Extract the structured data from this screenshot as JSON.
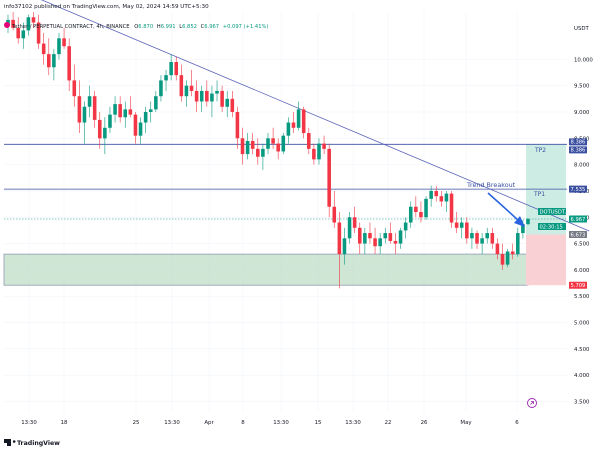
{
  "header": {
    "published_by": "info37102 published on TradingView.com, May 02, 2024 14:59 UTC+5:30",
    "symbol_line": "Tether / PERPETUAL CONTRACT, 4h, BINANCE",
    "open_label": "O",
    "open_value": "6.870",
    "high_label": "H",
    "high_value": "6.991",
    "low_label": "L",
    "low_value": "6.852",
    "close_label": "C",
    "close_value": "6.967",
    "change": "+0.097 (+1.41%)"
  },
  "currency": "USDT",
  "footer": {
    "brand": "TradingView"
  },
  "colors": {
    "up": "#089981",
    "down": "#f23645",
    "trendline": "#5b63b8",
    "level_line": "#3a4fa0",
    "support_zone": "#a9d1b3",
    "support_border": "#8f9bb3",
    "target_zone": "#cdece4",
    "stop_zone": "#f9d0d4",
    "arrow": "#2a63e0"
  },
  "annotations": {
    "trend_breakout": "Trend Breakout",
    "tp1": "TP1",
    "tp2": "TP2"
  },
  "price_badges": [
    {
      "value": "8.386",
      "bg": "#3a4fa0"
    },
    {
      "value": "8.386",
      "bg": "#3a4fa0"
    },
    {
      "value": "7.535",
      "bg": "#3a4fa0"
    },
    {
      "value": "DOTUSDT.P",
      "bg": "#089981"
    },
    {
      "value": "6.967",
      "bg": "#089981"
    },
    {
      "value": "02:30:15",
      "bg": "#089981"
    },
    {
      "value": "6.673",
      "bg": "#787b86"
    },
    {
      "value": "5.709",
      "bg": "#f23645"
    }
  ],
  "chart_data": {
    "type": "candlestick",
    "timeframe": "4h",
    "price_ticks": [
      "10.000",
      "9.500",
      "9.000",
      "8.500",
      "8.000",
      "7.500",
      "7.000",
      "6.500",
      "6.000",
      "5.500",
      "5.000",
      "4.500",
      "4.000",
      "3.500"
    ],
    "time_ticks": [
      "13:30",
      "18",
      "25",
      "13:30",
      "Apr",
      "8",
      "13:30",
      "15",
      "13:30",
      "22",
      "26",
      "May",
      "6"
    ],
    "ylim": [
      3.3,
      10.9
    ],
    "levels": {
      "tp2": 8.386,
      "tp1": 7.535,
      "entry": 6.673,
      "stop": 5.709,
      "support_zone": [
        5.709,
        6.3
      ],
      "last_price": 6.967
    },
    "trendline": {
      "from": [
        0,
        11.4
      ],
      "to": [
        114,
        6.74
      ]
    },
    "candles": [
      [
        10.65,
        10.85,
        10.5,
        10.75
      ],
      [
        10.75,
        10.9,
        10.55,
        10.6
      ],
      [
        10.6,
        10.8,
        10.3,
        10.4
      ],
      [
        10.4,
        10.7,
        10.2,
        10.55
      ],
      [
        10.55,
        10.85,
        10.45,
        10.8
      ],
      [
        10.8,
        10.9,
        10.6,
        10.7
      ],
      [
        10.7,
        10.85,
        10.2,
        10.3
      ],
      [
        10.3,
        10.5,
        9.9,
        10.1
      ],
      [
        10.1,
        10.4,
        9.7,
        9.85
      ],
      [
        9.85,
        10.2,
        9.6,
        10.1
      ],
      [
        10.1,
        10.5,
        10.0,
        10.4
      ],
      [
        10.4,
        10.6,
        10.2,
        10.25
      ],
      [
        10.25,
        10.4,
        9.4,
        9.6
      ],
      [
        9.6,
        9.9,
        9.1,
        9.3
      ],
      [
        9.3,
        9.6,
        8.6,
        8.8
      ],
      [
        8.8,
        9.2,
        8.4,
        9.1
      ],
      [
        9.1,
        9.5,
        8.9,
        9.3
      ],
      [
        9.3,
        9.4,
        8.7,
        8.85
      ],
      [
        8.85,
        9.0,
        8.3,
        8.5
      ],
      [
        8.5,
        8.9,
        8.2,
        8.7
      ],
      [
        8.7,
        9.1,
        8.6,
        8.95
      ],
      [
        8.95,
        9.3,
        8.8,
        9.15
      ],
      [
        9.15,
        9.3,
        8.8,
        8.9
      ],
      [
        8.9,
        9.2,
        8.7,
        9.05
      ],
      [
        9.05,
        9.3,
        8.9,
        8.95
      ],
      [
        8.95,
        9.0,
        8.4,
        8.55
      ],
      [
        8.55,
        8.9,
        8.4,
        8.8
      ],
      [
        8.8,
        9.1,
        8.6,
        9.0
      ],
      [
        9.0,
        9.2,
        8.8,
        9.05
      ],
      [
        9.05,
        9.4,
        9.0,
        9.3
      ],
      [
        9.3,
        9.7,
        9.2,
        9.6
      ],
      [
        9.6,
        9.8,
        9.4,
        9.7
      ],
      [
        9.7,
        10.1,
        9.6,
        9.95
      ],
      [
        9.95,
        10.05,
        9.6,
        9.7
      ],
      [
        9.7,
        9.9,
        9.2,
        9.3
      ],
      [
        9.3,
        9.6,
        9.1,
        9.5
      ],
      [
        9.5,
        9.8,
        9.3,
        9.4
      ],
      [
        9.4,
        9.6,
        9.0,
        9.2
      ],
      [
        9.2,
        9.5,
        9.0,
        9.4
      ],
      [
        9.4,
        9.6,
        9.1,
        9.2
      ],
      [
        9.2,
        9.5,
        8.9,
        9.35
      ],
      [
        9.35,
        9.6,
        9.2,
        9.4
      ],
      [
        9.4,
        9.5,
        9.0,
        9.1
      ],
      [
        9.1,
        9.4,
        8.9,
        9.25
      ],
      [
        9.25,
        9.4,
        8.9,
        9.0
      ],
      [
        9.0,
        9.1,
        8.3,
        8.5
      ],
      [
        8.5,
        8.7,
        8.0,
        8.2
      ],
      [
        8.2,
        8.6,
        8.1,
        8.45
      ],
      [
        8.45,
        8.6,
        8.2,
        8.3
      ],
      [
        8.3,
        8.5,
        8.0,
        8.15
      ],
      [
        8.15,
        8.4,
        7.9,
        8.3
      ],
      [
        8.3,
        8.6,
        8.2,
        8.5
      ],
      [
        8.5,
        8.7,
        8.3,
        8.4
      ],
      [
        8.4,
        8.5,
        8.1,
        8.25
      ],
      [
        8.25,
        8.6,
        8.2,
        8.55
      ],
      [
        8.55,
        8.9,
        8.4,
        8.8
      ],
      [
        8.8,
        9.0,
        8.6,
        8.7
      ],
      [
        8.7,
        9.2,
        8.65,
        9.05
      ],
      [
        9.05,
        9.1,
        8.5,
        8.6
      ],
      [
        8.6,
        8.7,
        8.2,
        8.3
      ],
      [
        8.3,
        8.4,
        8.0,
        8.1
      ],
      [
        8.1,
        8.5,
        8.0,
        8.4
      ],
      [
        8.4,
        8.55,
        8.2,
        8.3
      ],
      [
        8.3,
        8.4,
        7.0,
        7.2
      ],
      [
        7.2,
        7.5,
        6.8,
        6.9
      ],
      [
        6.9,
        7.1,
        5.65,
        6.3
      ],
      [
        6.3,
        6.8,
        6.1,
        6.6
      ],
      [
        6.6,
        7.1,
        6.5,
        7.0
      ],
      [
        7.0,
        7.2,
        6.7,
        6.8
      ],
      [
        6.8,
        6.9,
        6.3,
        6.5
      ],
      [
        6.5,
        6.8,
        6.3,
        6.7
      ],
      [
        6.7,
        6.9,
        6.5,
        6.6
      ],
      [
        6.6,
        6.8,
        6.3,
        6.45
      ],
      [
        6.45,
        6.7,
        6.3,
        6.6
      ],
      [
        6.6,
        6.8,
        6.5,
        6.7
      ],
      [
        6.7,
        6.9,
        6.5,
        6.55
      ],
      [
        6.55,
        6.7,
        6.3,
        6.5
      ],
      [
        6.5,
        6.8,
        6.4,
        6.75
      ],
      [
        6.75,
        7.0,
        6.6,
        6.9
      ],
      [
        6.9,
        7.3,
        6.8,
        7.2
      ],
      [
        7.2,
        7.4,
        7.0,
        7.1
      ],
      [
        7.1,
        7.3,
        6.9,
        7.0
      ],
      [
        7.0,
        7.4,
        6.95,
        7.35
      ],
      [
        7.35,
        7.6,
        7.2,
        7.5
      ],
      [
        7.5,
        7.6,
        7.3,
        7.4
      ],
      [
        7.4,
        7.5,
        7.2,
        7.3
      ],
      [
        7.3,
        7.5,
        7.1,
        7.45
      ],
      [
        7.45,
        7.5,
        6.8,
        6.9
      ],
      [
        6.9,
        7.1,
        6.7,
        6.8
      ],
      [
        6.8,
        7.0,
        6.6,
        6.9
      ],
      [
        6.9,
        7.0,
        6.5,
        6.6
      ],
      [
        6.6,
        6.8,
        6.4,
        6.7
      ],
      [
        6.7,
        6.75,
        6.4,
        6.5
      ],
      [
        6.5,
        6.7,
        6.3,
        6.6
      ],
      [
        6.6,
        6.8,
        6.5,
        6.7
      ],
      [
        6.7,
        6.8,
        6.4,
        6.5
      ],
      [
        6.5,
        6.6,
        6.2,
        6.3
      ],
      [
        6.3,
        6.5,
        6.0,
        6.1
      ],
      [
        6.1,
        6.4,
        6.05,
        6.35
      ],
      [
        6.35,
        6.5,
        6.2,
        6.3
      ],
      [
        6.3,
        6.8,
        6.25,
        6.7
      ],
      [
        6.7,
        6.95,
        6.6,
        6.87
      ],
      [
        6.87,
        6.99,
        6.85,
        6.967
      ]
    ]
  }
}
